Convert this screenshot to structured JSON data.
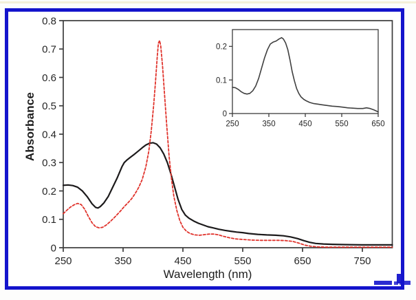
{
  "figure": {
    "description": "UV-Vis absorbance spectra figure with inset",
    "border_color": "#1414cc",
    "plot_frame_color": "#3b3b3b",
    "background": "#ffffff"
  },
  "chart_data": [
    {
      "type": "line",
      "role": "main",
      "title": "",
      "xlabel": "Wavelength (nm)",
      "ylabel": "Absorbance",
      "xlim": [
        250,
        800
      ],
      "ylim": [
        0,
        0.8
      ],
      "x_ticks": [
        250,
        350,
        450,
        550,
        650,
        750
      ],
      "y_ticks": [
        0,
        0.1,
        0.2,
        0.3,
        0.4,
        0.5,
        0.6,
        0.7,
        0.8
      ],
      "grid": false,
      "legend": "none",
      "series": [
        {
          "name": "solid-black-spectrum",
          "color": "#1c1a1b",
          "style": "solid",
          "width": 2.2,
          "points": [
            [
              250,
              0.22
            ],
            [
              258,
              0.221
            ],
            [
              266,
              0.219
            ],
            [
              274,
              0.213
            ],
            [
              282,
              0.2
            ],
            [
              290,
              0.18
            ],
            [
              298,
              0.155
            ],
            [
              304,
              0.142
            ],
            [
              308,
              0.14
            ],
            [
              312,
              0.145
            ],
            [
              318,
              0.158
            ],
            [
              325,
              0.18
            ],
            [
              332,
              0.21
            ],
            [
              340,
              0.245
            ],
            [
              348,
              0.285
            ],
            [
              352,
              0.3
            ],
            [
              356,
              0.308
            ],
            [
              362,
              0.318
            ],
            [
              368,
              0.328
            ],
            [
              375,
              0.34
            ],
            [
              382,
              0.352
            ],
            [
              388,
              0.362
            ],
            [
              394,
              0.368
            ],
            [
              400,
              0.37
            ],
            [
              406,
              0.365
            ],
            [
              412,
              0.352
            ],
            [
              418,
              0.33
            ],
            [
              424,
              0.3
            ],
            [
              430,
              0.26
            ],
            [
              436,
              0.215
            ],
            [
              442,
              0.17
            ],
            [
              448,
              0.135
            ],
            [
              454,
              0.115
            ],
            [
              460,
              0.104
            ],
            [
              468,
              0.094
            ],
            [
              476,
              0.086
            ],
            [
              484,
              0.08
            ],
            [
              492,
              0.074
            ],
            [
              500,
              0.07
            ],
            [
              510,
              0.065
            ],
            [
              520,
              0.061
            ],
            [
              530,
              0.058
            ],
            [
              540,
              0.055
            ],
            [
              550,
              0.053
            ],
            [
              560,
              0.05
            ],
            [
              575,
              0.047
            ],
            [
              590,
              0.045
            ],
            [
              605,
              0.044
            ],
            [
              618,
              0.042
            ],
            [
              630,
              0.038
            ],
            [
              642,
              0.032
            ],
            [
              652,
              0.025
            ],
            [
              662,
              0.019
            ],
            [
              672,
              0.015
            ],
            [
              685,
              0.013
            ],
            [
              700,
              0.012
            ],
            [
              720,
              0.011
            ],
            [
              750,
              0.01
            ],
            [
              775,
              0.01
            ],
            [
              800,
              0.01
            ]
          ]
        },
        {
          "name": "dashed-red-spectrum",
          "color": "#e0322b",
          "style": "dashed",
          "width": 1.8,
          "points": [
            [
              250,
              0.12
            ],
            [
              256,
              0.132
            ],
            [
              262,
              0.143
            ],
            [
              268,
              0.151
            ],
            [
              274,
              0.156
            ],
            [
              280,
              0.152
            ],
            [
              286,
              0.135
            ],
            [
              292,
              0.11
            ],
            [
              298,
              0.088
            ],
            [
              304,
              0.074
            ],
            [
              310,
              0.07
            ],
            [
              316,
              0.072
            ],
            [
              322,
              0.08
            ],
            [
              330,
              0.095
            ],
            [
              338,
              0.112
            ],
            [
              346,
              0.13
            ],
            [
              352,
              0.145
            ],
            [
              358,
              0.158
            ],
            [
              364,
              0.172
            ],
            [
              370,
              0.19
            ],
            [
              376,
              0.212
            ],
            [
              382,
              0.24
            ],
            [
              388,
              0.285
            ],
            [
              393,
              0.34
            ],
            [
              397,
              0.41
            ],
            [
              401,
              0.5
            ],
            [
              404,
              0.58
            ],
            [
              407,
              0.67
            ],
            [
              409,
              0.72
            ],
            [
              411,
              0.73
            ],
            [
              413,
              0.71
            ],
            [
              416,
              0.64
            ],
            [
              419,
              0.55
            ],
            [
              423,
              0.43
            ],
            [
              427,
              0.32
            ],
            [
              431,
              0.24
            ],
            [
              435,
              0.18
            ],
            [
              440,
              0.13
            ],
            [
              445,
              0.095
            ],
            [
              450,
              0.072
            ],
            [
              456,
              0.058
            ],
            [
              462,
              0.05
            ],
            [
              470,
              0.045
            ],
            [
              478,
              0.044
            ],
            [
              486,
              0.046
            ],
            [
              494,
              0.048
            ],
            [
              502,
              0.048
            ],
            [
              510,
              0.045
            ],
            [
              518,
              0.04
            ],
            [
              528,
              0.035
            ],
            [
              538,
              0.031
            ],
            [
              550,
              0.029
            ],
            [
              565,
              0.027
            ],
            [
              580,
              0.026
            ],
            [
              595,
              0.026
            ],
            [
              610,
              0.026
            ],
            [
              622,
              0.025
            ],
            [
              634,
              0.022
            ],
            [
              644,
              0.016
            ],
            [
              654,
              0.009
            ],
            [
              664,
              0.005
            ],
            [
              676,
              0.003
            ],
            [
              690,
              0.002
            ],
            [
              720,
              0.002
            ],
            [
              760,
              0.002
            ],
            [
              800,
              0.002
            ]
          ]
        }
      ]
    },
    {
      "type": "line",
      "role": "inset",
      "title": "",
      "xlabel": "",
      "ylabel": "",
      "xlim": [
        250,
        650
      ],
      "ylim": [
        0,
        0.25
      ],
      "x_ticks": [
        250,
        350,
        450,
        550,
        650
      ],
      "y_ticks": [
        0,
        0.1,
        0.2
      ],
      "grid": false,
      "legend": "none",
      "series": [
        {
          "name": "inset-black-spectrum",
          "color": "#3f3f3f",
          "style": "solid",
          "width": 1.6,
          "points": [
            [
              250,
              0.078
            ],
            [
              258,
              0.077
            ],
            [
              266,
              0.072
            ],
            [
              274,
              0.065
            ],
            [
              282,
              0.06
            ],
            [
              290,
              0.058
            ],
            [
              298,
              0.06
            ],
            [
              306,
              0.068
            ],
            [
              314,
              0.082
            ],
            [
              322,
              0.105
            ],
            [
              330,
              0.135
            ],
            [
              338,
              0.165
            ],
            [
              346,
              0.19
            ],
            [
              354,
              0.207
            ],
            [
              362,
              0.213
            ],
            [
              370,
              0.216
            ],
            [
              378,
              0.222
            ],
            [
              385,
              0.226
            ],
            [
              390,
              0.222
            ],
            [
              396,
              0.21
            ],
            [
              402,
              0.19
            ],
            [
              408,
              0.16
            ],
            [
              414,
              0.125
            ],
            [
              420,
              0.098
            ],
            [
              426,
              0.075
            ],
            [
              432,
              0.06
            ],
            [
              438,
              0.05
            ],
            [
              446,
              0.042
            ],
            [
              454,
              0.037
            ],
            [
              462,
              0.033
            ],
            [
              472,
              0.03
            ],
            [
              484,
              0.028
            ],
            [
              496,
              0.026
            ],
            [
              510,
              0.024
            ],
            [
              524,
              0.022
            ],
            [
              538,
              0.021
            ],
            [
              552,
              0.019
            ],
            [
              566,
              0.017
            ],
            [
              580,
              0.016
            ],
            [
              594,
              0.015
            ],
            [
              608,
              0.015
            ],
            [
              618,
              0.017
            ],
            [
              628,
              0.015
            ],
            [
              638,
              0.011
            ],
            [
              646,
              0.007
            ],
            [
              650,
              0.005
            ]
          ]
        }
      ]
    }
  ]
}
